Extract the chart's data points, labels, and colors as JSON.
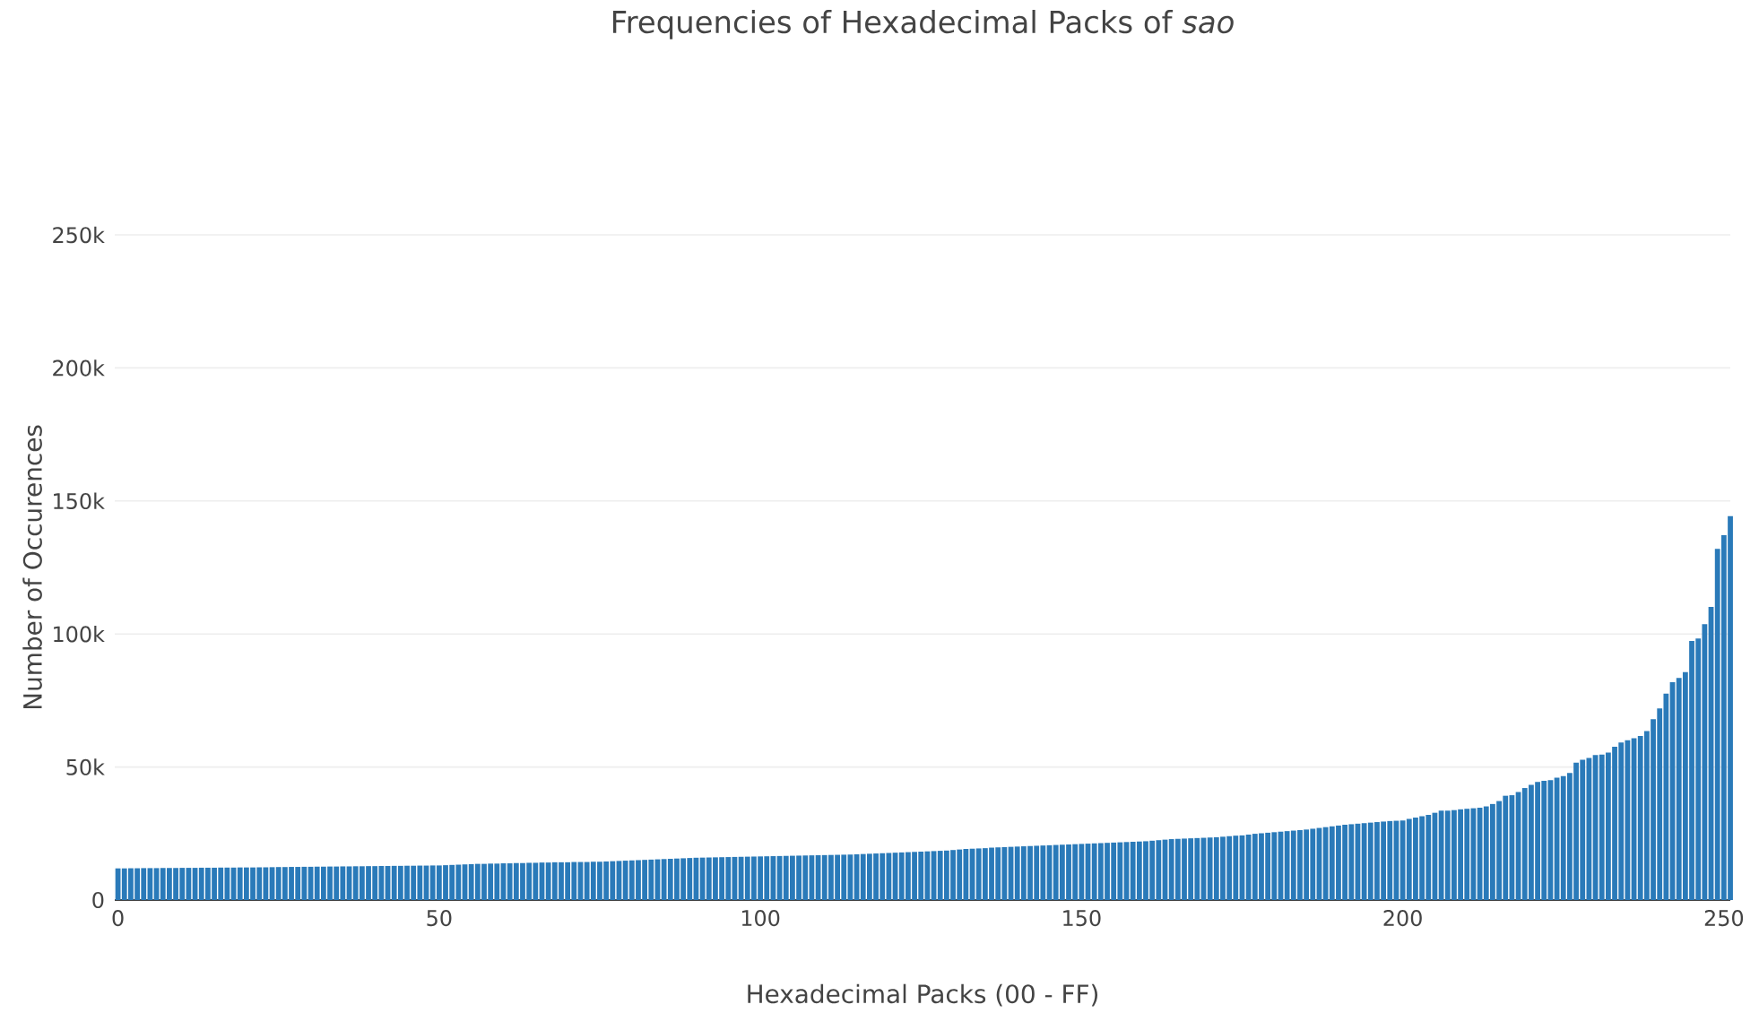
{
  "chart_data": {
    "type": "bar",
    "title": "Frequencies of Hexadecimal Packs of *sao*",
    "xlabel": "Hexadecimal Packs (00 - FF)",
    "ylabel": "Number of Occurences",
    "x": [
      0,
      1,
      2,
      3,
      4,
      5,
      6,
      7,
      8,
      9,
      10,
      11,
      12,
      13,
      14,
      15,
      16,
      17,
      18,
      19,
      20,
      21,
      22,
      23,
      24,
      25,
      26,
      27,
      28,
      29,
      30,
      31,
      32,
      33,
      34,
      35,
      36,
      37,
      38,
      39,
      40,
      41,
      42,
      43,
      44,
      45,
      46,
      47,
      48,
      49,
      50,
      51,
      52,
      53,
      54,
      55,
      56,
      57,
      58,
      59,
      60,
      61,
      62,
      63,
      64,
      65,
      66,
      67,
      68,
      69,
      70,
      71,
      72,
      73,
      74,
      75,
      76,
      77,
      78,
      79,
      80,
      81,
      82,
      83,
      84,
      85,
      86,
      87,
      88,
      89,
      90,
      91,
      92,
      93,
      94,
      95,
      96,
      97,
      98,
      99,
      100,
      101,
      102,
      103,
      104,
      105,
      106,
      107,
      108,
      109,
      110,
      111,
      112,
      113,
      114,
      115,
      116,
      117,
      118,
      119,
      120,
      121,
      122,
      123,
      124,
      125,
      126,
      127,
      128,
      129,
      130,
      131,
      132,
      133,
      134,
      135,
      136,
      137,
      138,
      139,
      140,
      141,
      142,
      143,
      144,
      145,
      146,
      147,
      148,
      149,
      150,
      151,
      152,
      153,
      154,
      155,
      156,
      157,
      158,
      159,
      160,
      161,
      162,
      163,
      164,
      165,
      166,
      167,
      168,
      169,
      170,
      171,
      172,
      173,
      174,
      175,
      176,
      177,
      178,
      179,
      180,
      181,
      182,
      183,
      184,
      185,
      186,
      187,
      188,
      189,
      190,
      191,
      192,
      193,
      194,
      195,
      196,
      197,
      198,
      199,
      200,
      201,
      202,
      203,
      204,
      205,
      206,
      207,
      208,
      209,
      210,
      211,
      212,
      213,
      214,
      215,
      216,
      217,
      218,
      219,
      220,
      221,
      222,
      223,
      224,
      225,
      226,
      227,
      228,
      229,
      230,
      231,
      232,
      233,
      234,
      235,
      236,
      237,
      238,
      239,
      240,
      241,
      242,
      243,
      244,
      245,
      246,
      247,
      248,
      249,
      250,
      251
    ],
    "values": [
      11900,
      11900,
      11950,
      11950,
      12000,
      12000,
      12000,
      12050,
      12050,
      12050,
      12100,
      12100,
      12100,
      12150,
      12150,
      12150,
      12200,
      12200,
      12200,
      12250,
      12250,
      12250,
      12300,
      12300,
      12350,
      12400,
      12400,
      12450,
      12450,
      12500,
      12500,
      12550,
      12550,
      12600,
      12600,
      12650,
      12650,
      12700,
      12700,
      12750,
      12750,
      12800,
      12800,
      12850,
      12850,
      12900,
      12900,
      12950,
      12950,
      13000,
      13000,
      13100,
      13200,
      13300,
      13400,
      13500,
      13600,
      13600,
      13700,
      13700,
      13800,
      13800,
      13900,
      13900,
      14000,
      14000,
      14100,
      14100,
      14200,
      14200,
      14200,
      14300,
      14300,
      14300,
      14400,
      14400,
      14500,
      14600,
      14700,
      14800,
      14900,
      15000,
      15100,
      15200,
      15300,
      15400,
      15500,
      15600,
      15700,
      15800,
      15900,
      15950,
      16000,
      16050,
      16100,
      16150,
      16200,
      16250,
      16300,
      16350,
      16400,
      16450,
      16500,
      16550,
      16600,
      16650,
      16700,
      16750,
      16800,
      16850,
      16900,
      16950,
      17000,
      17050,
      17100,
      17200,
      17300,
      17400,
      17500,
      17600,
      17700,
      17800,
      17900,
      18000,
      18100,
      18200,
      18300,
      18400,
      18500,
      18600,
      18800,
      19000,
      19200,
      19300,
      19400,
      19500,
      19700,
      19800,
      19900,
      20000,
      20100,
      20200,
      20300,
      20400,
      20500,
      20600,
      20700,
      20800,
      20900,
      21000,
      21100,
      21200,
      21300,
      21400,
      21500,
      21600,
      21700,
      21800,
      21900,
      22000,
      22100,
      22300,
      22500,
      22700,
      22900,
      23000,
      23100,
      23200,
      23300,
      23400,
      23500,
      23600,
      23800,
      24000,
      24200,
      24300,
      24600,
      24900,
      25100,
      25300,
      25500,
      25700,
      25900,
      26100,
      26300,
      26500,
      26800,
      27100,
      27400,
      27700,
      28000,
      28300,
      28500,
      28700,
      28900,
      29100,
      29300,
      29500,
      29700,
      29800,
      29900,
      30500,
      31000,
      31500,
      32000,
      32800,
      33600,
      33600,
      33800,
      34100,
      34300,
      34500,
      34700,
      35200,
      36100,
      37200,
      39200,
      39400,
      40600,
      42100,
      43300,
      44400,
      44800,
      45100,
      46000,
      46600,
      47800,
      51600,
      52700,
      53400,
      54500,
      54700,
      55400,
      57600,
      59200,
      60100,
      60800,
      61700,
      63500,
      68000,
      72000,
      77600,
      81900,
      83500,
      85700,
      97400,
      98300,
      103700,
      110200,
      132000,
      137100,
      144300
    ],
    "color": "#2a7ab9",
    "xlim": [
      -0.5,
      251
    ],
    "xticks": [
      0,
      50,
      100,
      150,
      200,
      250
    ],
    "ylim": [
      0,
      250000
    ],
    "yticks": [
      0,
      {
        "value": 50000,
        "label": "50k"
      },
      {
        "value": 100000,
        "label": "100k"
      },
      {
        "value": 150000,
        "label": "150k"
      },
      {
        "value": 200000,
        "label": "200k"
      },
      {
        "value": 250000,
        "label": "250k"
      }
    ],
    "grid": "y"
  }
}
